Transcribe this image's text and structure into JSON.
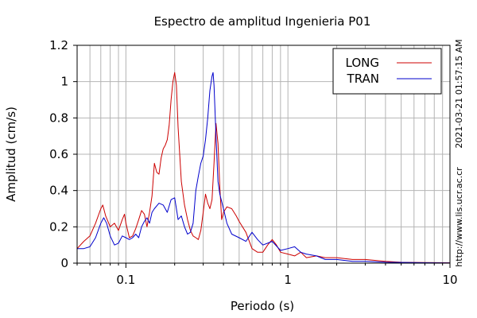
{
  "chart_data": {
    "type": "line",
    "title": "Espectro de amplitud Ingenieria P01",
    "xlabel": "Periodo (s)",
    "ylabel": "Amplitud (cm/s)",
    "xscale": "log",
    "xlim": [
      0.05,
      10
    ],
    "ylim": [
      0,
      1.2
    ],
    "x_ticks": [
      {
        "value": 0.1,
        "label": "0.1"
      },
      {
        "value": 1,
        "label": "1"
      },
      {
        "value": 10,
        "label": "10"
      }
    ],
    "y_ticks": [
      {
        "value": 0,
        "label": "0"
      },
      {
        "value": 0.2,
        "label": "0.2"
      },
      {
        "value": 0.4,
        "label": "0.4"
      },
      {
        "value": 0.6,
        "label": "0.6"
      },
      {
        "value": 0.8,
        "label": "0.8"
      },
      {
        "value": 1,
        "label": "1"
      },
      {
        "value": 1.2,
        "label": "1.2"
      }
    ],
    "grid": true,
    "legend": "top-right",
    "timestamp": "2021-03-21 01:57:15 AM",
    "url": "http://www.lis.ucr.ac.cr",
    "series": [
      {
        "name": "LONG",
        "color": "#cc0000",
        "points": [
          [
            0.05,
            0.08
          ],
          [
            0.055,
            0.12
          ],
          [
            0.06,
            0.15
          ],
          [
            0.065,
            0.22
          ],
          [
            0.07,
            0.3
          ],
          [
            0.072,
            0.32
          ],
          [
            0.075,
            0.26
          ],
          [
            0.08,
            0.2
          ],
          [
            0.085,
            0.22
          ],
          [
            0.09,
            0.18
          ],
          [
            0.095,
            0.24
          ],
          [
            0.098,
            0.27
          ],
          [
            0.1,
            0.22
          ],
          [
            0.105,
            0.14
          ],
          [
            0.11,
            0.15
          ],
          [
            0.115,
            0.19
          ],
          [
            0.12,
            0.24
          ],
          [
            0.125,
            0.29
          ],
          [
            0.13,
            0.27
          ],
          [
            0.135,
            0.2
          ],
          [
            0.14,
            0.28
          ],
          [
            0.145,
            0.37
          ],
          [
            0.15,
            0.55
          ],
          [
            0.155,
            0.5
          ],
          [
            0.16,
            0.49
          ],
          [
            0.165,
            0.58
          ],
          [
            0.17,
            0.63
          ],
          [
            0.175,
            0.65
          ],
          [
            0.18,
            0.68
          ],
          [
            0.185,
            0.76
          ],
          [
            0.19,
            0.9
          ],
          [
            0.195,
            1.0
          ],
          [
            0.2,
            1.05
          ],
          [
            0.205,
            0.98
          ],
          [
            0.21,
            0.75
          ],
          [
            0.22,
            0.45
          ],
          [
            0.23,
            0.32
          ],
          [
            0.24,
            0.24
          ],
          [
            0.25,
            0.18
          ],
          [
            0.26,
            0.15
          ],
          [
            0.27,
            0.14
          ],
          [
            0.28,
            0.13
          ],
          [
            0.29,
            0.18
          ],
          [
            0.3,
            0.28
          ],
          [
            0.31,
            0.38
          ],
          [
            0.32,
            0.33
          ],
          [
            0.33,
            0.3
          ],
          [
            0.34,
            0.35
          ],
          [
            0.35,
            0.55
          ],
          [
            0.36,
            0.77
          ],
          [
            0.37,
            0.66
          ],
          [
            0.38,
            0.42
          ],
          [
            0.39,
            0.24
          ],
          [
            0.4,
            0.28
          ],
          [
            0.42,
            0.31
          ],
          [
            0.45,
            0.3
          ],
          [
            0.48,
            0.26
          ],
          [
            0.5,
            0.23
          ],
          [
            0.55,
            0.17
          ],
          [
            0.6,
            0.08
          ],
          [
            0.65,
            0.06
          ],
          [
            0.7,
            0.06
          ],
          [
            0.75,
            0.1
          ],
          [
            0.8,
            0.13
          ],
          [
            0.85,
            0.1
          ],
          [
            0.9,
            0.06
          ],
          [
            1.0,
            0.05
          ],
          [
            1.1,
            0.04
          ],
          [
            1.2,
            0.06
          ],
          [
            1.3,
            0.03
          ],
          [
            1.5,
            0.04
          ],
          [
            1.7,
            0.03
          ],
          [
            2.0,
            0.03
          ],
          [
            2.5,
            0.02
          ],
          [
            3.0,
            0.02
          ],
          [
            4.0,
            0.01
          ],
          [
            5.0,
            0.005
          ],
          [
            7.0,
            0.003
          ],
          [
            10.0,
            0.002
          ]
        ]
      },
      {
        "name": "TRAN",
        "color": "#0000cc",
        "points": [
          [
            0.05,
            0.08
          ],
          [
            0.055,
            0.08
          ],
          [
            0.06,
            0.09
          ],
          [
            0.065,
            0.14
          ],
          [
            0.07,
            0.22
          ],
          [
            0.073,
            0.25
          ],
          [
            0.076,
            0.22
          ],
          [
            0.08,
            0.15
          ],
          [
            0.085,
            0.1
          ],
          [
            0.09,
            0.11
          ],
          [
            0.095,
            0.15
          ],
          [
            0.1,
            0.14
          ],
          [
            0.105,
            0.13
          ],
          [
            0.11,
            0.14
          ],
          [
            0.115,
            0.16
          ],
          [
            0.12,
            0.14
          ],
          [
            0.125,
            0.2
          ],
          [
            0.13,
            0.23
          ],
          [
            0.135,
            0.25
          ],
          [
            0.14,
            0.22
          ],
          [
            0.145,
            0.28
          ],
          [
            0.15,
            0.3
          ],
          [
            0.16,
            0.33
          ],
          [
            0.17,
            0.32
          ],
          [
            0.18,
            0.28
          ],
          [
            0.19,
            0.35
          ],
          [
            0.2,
            0.36
          ],
          [
            0.205,
            0.3
          ],
          [
            0.21,
            0.24
          ],
          [
            0.22,
            0.26
          ],
          [
            0.23,
            0.2
          ],
          [
            0.24,
            0.16
          ],
          [
            0.25,
            0.17
          ],
          [
            0.26,
            0.22
          ],
          [
            0.27,
            0.4
          ],
          [
            0.28,
            0.48
          ],
          [
            0.29,
            0.55
          ],
          [
            0.3,
            0.59
          ],
          [
            0.31,
            0.68
          ],
          [
            0.32,
            0.8
          ],
          [
            0.33,
            0.95
          ],
          [
            0.34,
            1.03
          ],
          [
            0.345,
            1.05
          ],
          [
            0.35,
            0.98
          ],
          [
            0.36,
            0.7
          ],
          [
            0.37,
            0.45
          ],
          [
            0.38,
            0.38
          ],
          [
            0.4,
            0.3
          ],
          [
            0.42,
            0.22
          ],
          [
            0.45,
            0.16
          ],
          [
            0.5,
            0.14
          ],
          [
            0.55,
            0.12
          ],
          [
            0.6,
            0.17
          ],
          [
            0.65,
            0.13
          ],
          [
            0.7,
            0.1
          ],
          [
            0.75,
            0.11
          ],
          [
            0.8,
            0.12
          ],
          [
            0.9,
            0.07
          ],
          [
            1.0,
            0.08
          ],
          [
            1.1,
            0.09
          ],
          [
            1.2,
            0.06
          ],
          [
            1.3,
            0.05
          ],
          [
            1.5,
            0.04
          ],
          [
            1.7,
            0.02
          ],
          [
            2.0,
            0.02
          ],
          [
            2.5,
            0.01
          ],
          [
            3.0,
            0.01
          ],
          [
            4.0,
            0.005
          ],
          [
            5.0,
            0.004
          ],
          [
            7.0,
            0.002
          ],
          [
            10.0,
            0.001
          ]
        ]
      }
    ]
  }
}
